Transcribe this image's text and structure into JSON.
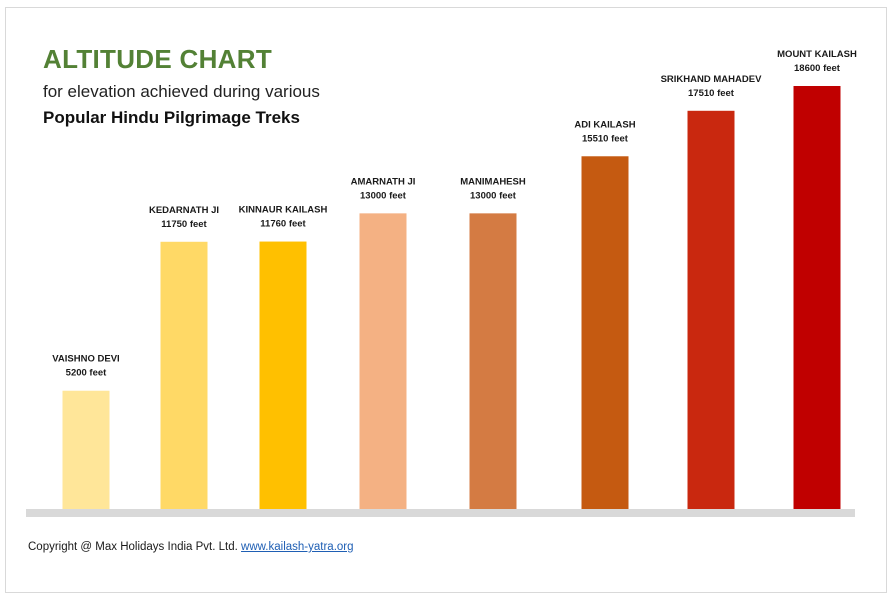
{
  "header": {
    "title": "ALTITUDE CHART",
    "subtitle_line1": "for elevation achieved during various",
    "subtitle_line2": "Popular Hindu Pilgrimage Treks"
  },
  "footer": {
    "copyright": "Copyright @ Max Holidays India Pvt. Ltd.",
    "link_text": "www.kailash-yatra.org"
  },
  "colors": {
    "title": "#538135",
    "baseline": "#d9d9d9",
    "bars": [
      "#ffe699",
      "#ffd966",
      "#ffc000",
      "#f4b183",
      "#d47b43",
      "#c55a11",
      "#c9280f",
      "#c00000"
    ]
  },
  "chart_data": {
    "type": "bar",
    "title": "ALTITUDE CHART",
    "xlabel": "",
    "ylabel": "",
    "unit": "feet",
    "ylim": [
      0,
      18600
    ],
    "grid": false,
    "legend": "none",
    "categories": [
      "VAISHNO DEVI",
      "KEDARNATH JI",
      "KINNAUR KAILASH",
      "AMARNATH JI",
      "MANIMAHESH",
      "ADI KAILASH",
      "SRIKHAND MAHADEV",
      "MOUNT KAILASH"
    ],
    "values": [
      5200,
      11750,
      11760,
      13000,
      13000,
      15510,
      17510,
      18600
    ],
    "data_labels": [
      "5200 feet",
      "11750 feet",
      "11760 feet",
      "13000 feet",
      "13000 feet",
      "15510 feet",
      "17510 feet",
      "18600 feet"
    ]
  }
}
